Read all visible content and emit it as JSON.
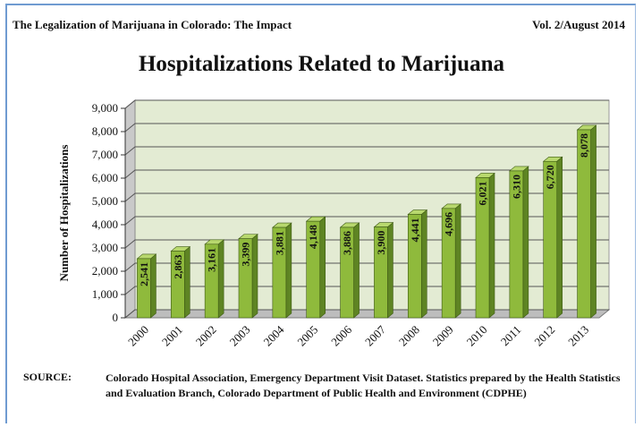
{
  "header": {
    "left": "The Legalization of Marijuana in Colorado:  The Impact",
    "right": "Vol. 2/August 2014"
  },
  "source": {
    "label": "SOURCE:",
    "text": "Colorado Hospital Association, Emergency Department Visit Dataset.  Statistics prepared by the Health Statistics and Evaluation Branch, Colorado Department of Public Health and Environment (CDPHE)"
  },
  "colors": {
    "bar_front": "#8fba3c",
    "bar_side": "#5e8423",
    "bar_top": "#b8d86e",
    "wall": "#e3ebd3",
    "grid": "#555555"
  },
  "chart_data": {
    "type": "bar",
    "title": "Hospitalizations Related to Marijuana",
    "ylabel": "Number of Hospitalizations",
    "xlabel": "",
    "categories": [
      "2000",
      "2001",
      "2002",
      "2003",
      "2004",
      "2005",
      "2006",
      "2007",
      "2008",
      "2009",
      "2010",
      "2011",
      "2012",
      "2013"
    ],
    "values": [
      2541,
      2863,
      3161,
      3399,
      3881,
      4148,
      3886,
      3900,
      4441,
      4696,
      6021,
      6310,
      6720,
      8078
    ],
    "data_labels": [
      "2,541",
      "2,863",
      "3,161",
      "3,399",
      "3,881",
      "4,148",
      "3,886",
      "3,900",
      "4,441",
      "4,696",
      "6,021",
      "6,310",
      "6,720",
      "8,078"
    ],
    "yticks": [
      "0",
      "1,000",
      "2,000",
      "3,000",
      "4,000",
      "5,000",
      "6,000",
      "7,000",
      "8,000",
      "9,000"
    ],
    "ylim": [
      0,
      9000
    ],
    "grid": true,
    "style": "3d-column"
  }
}
